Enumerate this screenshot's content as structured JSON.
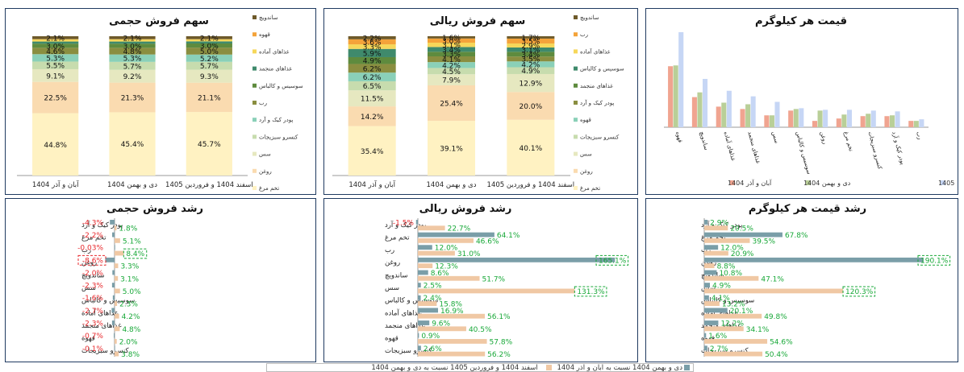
{
  "colors": {
    "seg": [
      "#fff2c2",
      "#fadbb0",
      "#e6e8c0",
      "#c7dcae",
      "#8ad0b8",
      "#8a8e40",
      "#5e8b3e",
      "#3f8a6c",
      "#f6d75a",
      "#f4a33a",
      "#6e5a2a",
      "#c9c9c9"
    ],
    "bar1404": "#7a9ea8",
    "bar1405": "#f0c8a4",
    "price": [
      "#f0a490",
      "#b9cf98",
      "#c6d6f5"
    ],
    "pos": "#18a838",
    "neg": "#e8282c",
    "border": "#1f3a60"
  },
  "chart_data": [
    {
      "id": "vol-share",
      "type": "bar",
      "title": "سهم فروش حجمی",
      "categories": [
        "آبان و آذر 1404",
        "دی و بهمن 1404",
        "اسفند 1404 و فروردین 1405"
      ],
      "legend": [
        "تخم مرغ",
        "روغن",
        "سس",
        "کنسرو سبزیجات",
        "پودر کیک و آرد",
        "رب",
        "سوسیس و کالباس",
        "غذاهای منجمد",
        "غذاهای آماده",
        "قهوه",
        "ساندویچ"
      ],
      "series": [
        {
          "name": "تخم مرغ",
          "values": [
            44.8,
            45.4,
            45.7
          ],
          "labels": [
            "44.8%",
            "45.4%",
            "45.7%"
          ]
        },
        {
          "name": "روغن",
          "values": [
            22.5,
            21.3,
            21.1
          ],
          "labels": [
            "22.5%",
            "21.3%",
            "21.1%"
          ]
        },
        {
          "name": "سس",
          "values": [
            9.1,
            9.2,
            9.3
          ],
          "labels": [
            "9.1%",
            "9.2%",
            "9.3%"
          ]
        },
        {
          "name": "کنسرو سبزیجات",
          "values": [
            5.5,
            5.7,
            5.7
          ],
          "labels": [
            "5.5%",
            "5.7%",
            "5.7%"
          ]
        },
        {
          "name": "پودر کیک و آرد",
          "values": [
            5.3,
            5.3,
            5.2
          ],
          "labels": [
            "5.3%",
            "5.3%",
            "5.2%"
          ]
        },
        {
          "name": "رب",
          "values": [
            4.6,
            4.8,
            5.0
          ],
          "labels": [
            "4.6%",
            "4.8%",
            "5.0%"
          ]
        },
        {
          "name": "سوسیس و کالباس",
          "values": [
            3.0,
            3.0,
            3.0
          ],
          "labels": [
            "3.0%",
            "3.0%",
            "3.0%"
          ]
        },
        {
          "name": "غذاهای منجمد",
          "values": [
            1.5,
            1.5,
            1.5
          ],
          "labels": [
            "",
            "",
            ""
          ]
        },
        {
          "name": "غذاهای آماده",
          "values": [
            1.6,
            1.6,
            1.5
          ],
          "labels": [
            "",
            "",
            ""
          ]
        },
        {
          "name": "قهوه",
          "values": [
            0.1,
            0.1,
            0.1
          ],
          "labels": [
            "",
            "",
            ""
          ]
        },
        {
          "name": "ساندویچ",
          "values": [
            2.1,
            2.1,
            2.1
          ],
          "labels": [
            "2.1%",
            "2.1%",
            "2.1%"
          ]
        }
      ]
    },
    {
      "id": "rial-share",
      "type": "bar",
      "title": "سهم فروش ریالی",
      "categories": [
        "آبان و آذر 1404",
        "دی و بهمن 1404",
        "اسفند 1404 و فروردین 1405"
      ],
      "legend": [
        "تخم مرغ",
        "روغن",
        "سس",
        "کنسرو سبزیجات",
        "قهوه",
        "پودر کیک و آرد",
        "غذاهای منجمد",
        "سوسیس و کالباس",
        "غذاهای آماده",
        "رب",
        "ساندویچ"
      ],
      "series": [
        {
          "name": "تخم مرغ",
          "values": [
            35.4,
            39.1,
            40.1
          ],
          "labels": [
            "35.4%",
            "39.1%",
            "40.1%"
          ]
        },
        {
          "name": "روغن",
          "values": [
            14.2,
            25.4,
            20.0
          ],
          "labels": [
            "14.2%",
            "25.4%",
            "20.0%"
          ]
        },
        {
          "name": "سس",
          "values": [
            11.5,
            7.9,
            12.9
          ],
          "labels": [
            "11.5%",
            "7.9%",
            "12.9%"
          ]
        },
        {
          "name": "کنسرو سبزیجات",
          "values": [
            6.5,
            4.5,
            4.9
          ],
          "labels": [
            "6.5%",
            "4.5%",
            "4.9%"
          ]
        },
        {
          "name": "قهوه",
          "values": [
            6.2,
            4.2,
            4.2
          ],
          "labels": [
            "6.2%",
            "4.2%",
            "4.2%"
          ]
        },
        {
          "name": "پودر کیک و آرد",
          "values": [
            6.2,
            4.1,
            3.5
          ],
          "labels": [
            "6.2%",
            "4.1%",
            "3.5%"
          ]
        },
        {
          "name": "غذاهای منجمد",
          "values": [
            4.9,
            3.3,
            3.4
          ],
          "labels": [
            "4.9%",
            "3.3%",
            "3.4%"
          ]
        },
        {
          "name": "سوسیس و کالباس",
          "values": [
            5.9,
            3.4,
            3.1
          ],
          "labels": [
            "5.9%",
            "3.4%",
            "3.1%"
          ]
        },
        {
          "name": "غذاهای آماده",
          "values": [
            3.3,
            3.1,
            2.9
          ],
          "labels": [
            "3.3%",
            "3.1%",
            "2.9%"
          ]
        },
        {
          "name": "رب",
          "values": [
            3.6,
            3.0,
            3.5
          ],
          "labels": [
            "3.6%",
            "3.0%",
            "3.5%"
          ]
        },
        {
          "name": "ساندویچ",
          "values": [
            2.2,
            1.6,
            1.7
          ],
          "labels": [
            "2.2%",
            "1.6%",
            "1.7%"
          ]
        }
      ]
    },
    {
      "id": "price-per-kg",
      "type": "bar",
      "title": "قیمت هر کیلوگرم",
      "categories": [
        "قهوه",
        "ساندویچ",
        "غذاهای آماده",
        "غذاهای منجمد",
        "سس",
        "سوسیس و کالباس",
        "روغن",
        "تخم مرغ",
        "کنسرو سبزیجات",
        "پودر کیک و آرد",
        "رب"
      ],
      "series": [
        {
          "name": "آبان و آذر 1404",
          "values": [
            77,
            38,
            26,
            23,
            15,
            21,
            8,
            11,
            14,
            14,
            8
          ]
        },
        {
          "name": "دی و بهمن 1404",
          "values": [
            78,
            44,
            31,
            29,
            15,
            23,
            21,
            16,
            17,
            15,
            8
          ]
        },
        {
          "name": "اسفند 1404 و فروردین 1405",
          "values": [
            120,
            61,
            46,
            39,
            32,
            24,
            22,
            22,
            21,
            20,
            10
          ]
        }
      ]
    },
    {
      "id": "vol-growth",
      "type": "bar",
      "title": "رشد فروش حجمی",
      "categories": [
        "پودر کیک و آرد",
        "تخم مرغ",
        "رب",
        "روغن",
        "ساندویچ",
        "سس",
        "سوسیس و کالباس",
        "غذاهای آماده",
        "غذاهای منجمد",
        "قهوه",
        "کنسرو سبزیجات"
      ],
      "series": [
        {
          "name": "دی و بهمن 1404 نسبت به آبان و آذر 1404",
          "values": [
            -4.3,
            -2.2,
            -0.03,
            -8.6,
            -2.0,
            -2.3,
            -1.6,
            -2.7,
            -2.3,
            -0.7,
            -0.1
          ],
          "labels": [
            "-4.3%",
            "-2.2%",
            "-0.03%",
            "-8.6%",
            "-2.0%",
            "-2.3%",
            "-1.6%",
            "-2.7%",
            "-2.3%",
            "-0.7%",
            "-0.1%"
          ]
        },
        {
          "name": "اسفند 1404 و فروردین 1405 نسبت به دی و بهمن 1404",
          "values": [
            1.8,
            5.1,
            8.4,
            3.3,
            3.1,
            5.0,
            2.3,
            4.2,
            4.8,
            2.0,
            3.8
          ],
          "labels": [
            "1.8%",
            "5.1%",
            "8.4%",
            "3.3%",
            "3.1%",
            "5.0%",
            "2.3%",
            "4.2%",
            "4.8%",
            "2.0%",
            "3.8%"
          ]
        }
      ]
    },
    {
      "id": "rial-growth",
      "type": "bar",
      "title": "رشد فروش ریالی",
      "categories": [
        "پودر کیک و آرد",
        "تخم مرغ",
        "رب",
        "روغن",
        "ساندویچ",
        "سس",
        "سوسیس و کالباس",
        "غذاهای آماده",
        "غذاهای منجمد",
        "قهوه",
        "کنسرو سبزیجات"
      ],
      "series": [
        {
          "name": "دی و بهمن 1404 نسبت به آبان و آذر 1404",
          "values": [
            -1.5,
            64.1,
            12.0,
            165.1,
            8.6,
            2.5,
            2.4,
            16.9,
            9.6,
            0.9,
            2.6
          ],
          "labels": [
            "-1.5%",
            "64.1%",
            "12.0%",
            "165.1%",
            "8.6%",
            "2.5%",
            "2.4%",
            "16.9%",
            "9.6%",
            "0.9%",
            "2.6%"
          ]
        },
        {
          "name": "اسفند 1404 و فروردین 1405 نسبت به دی و بهمن 1404",
          "values": [
            22.7,
            46.6,
            31.0,
            12.3,
            51.7,
            131.3,
            15.8,
            56.1,
            40.5,
            57.8,
            56.2
          ],
          "labels": [
            "22.7%",
            "46.6%",
            "31.0%",
            "12.3%",
            "51.7%",
            "131.3%",
            "15.8%",
            "56.1%",
            "40.5%",
            "57.8%",
            "56.2%"
          ]
        }
      ]
    },
    {
      "id": "price-growth",
      "type": "bar",
      "title": "رشد قیمت هر کیلوگرم",
      "categories": [
        "پودر کیک و آرد",
        "تخم مرغ",
        "رب",
        "روغن",
        "ساندویچ",
        "سس",
        "سوسیس و کالباس",
        "غذاهای آماده",
        "غذاهای منجمد",
        "قهوه",
        "کنسرو سبزیجات"
      ],
      "series": [
        {
          "name": "دی و بهمن 1404 نسبت به آبان و آذر 1404",
          "values": [
            2.9,
            67.8,
            12.0,
            190.1,
            10.8,
            4.9,
            4.1,
            20.1,
            12.2,
            1.6,
            2.7
          ],
          "labels": [
            "2.9%",
            "67.8%",
            "12.0%",
            "190.1%",
            "10.8%",
            "4.9%",
            "4.1%",
            "20.1%",
            "12.2%",
            "1.6%",
            "2.7%"
          ]
        },
        {
          "name": "اسفند 1404 و فروردین 1405 نسبت به دی و بهمن 1404",
          "values": [
            20.5,
            39.5,
            20.9,
            8.8,
            47.1,
            120.3,
            13.2,
            49.8,
            34.1,
            54.6,
            50.4
          ],
          "labels": [
            "20.5%",
            "39.5%",
            "20.9%",
            "8.8%",
            "47.1%",
            "120.3%",
            "13.2%",
            "49.8%",
            "34.1%",
            "54.6%",
            "50.4%"
          ]
        }
      ]
    }
  ],
  "legend_bottom": {
    "a": "دی و بهمن 1404 نسبت به آبان و آذر 1404",
    "b": "اسفند 1404 و فروردین 1405 نسبت به دی و بهمن 1404"
  }
}
